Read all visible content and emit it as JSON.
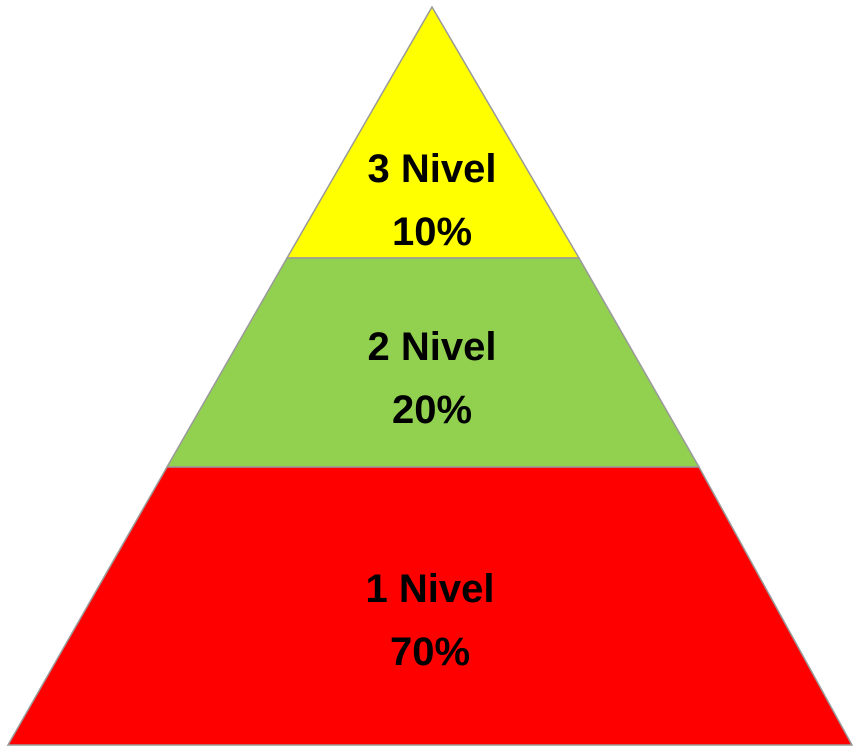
{
  "pyramid": {
    "tiers": [
      {
        "level_label": "3 Nivel",
        "percent_label": "10%",
        "color": "#ffff00"
      },
      {
        "level_label": "2 Nivel",
        "percent_label": "20%",
        "color": "#92d050"
      },
      {
        "level_label": "1 Nivel",
        "percent_label": "70%",
        "color": "#ff0000"
      }
    ]
  }
}
